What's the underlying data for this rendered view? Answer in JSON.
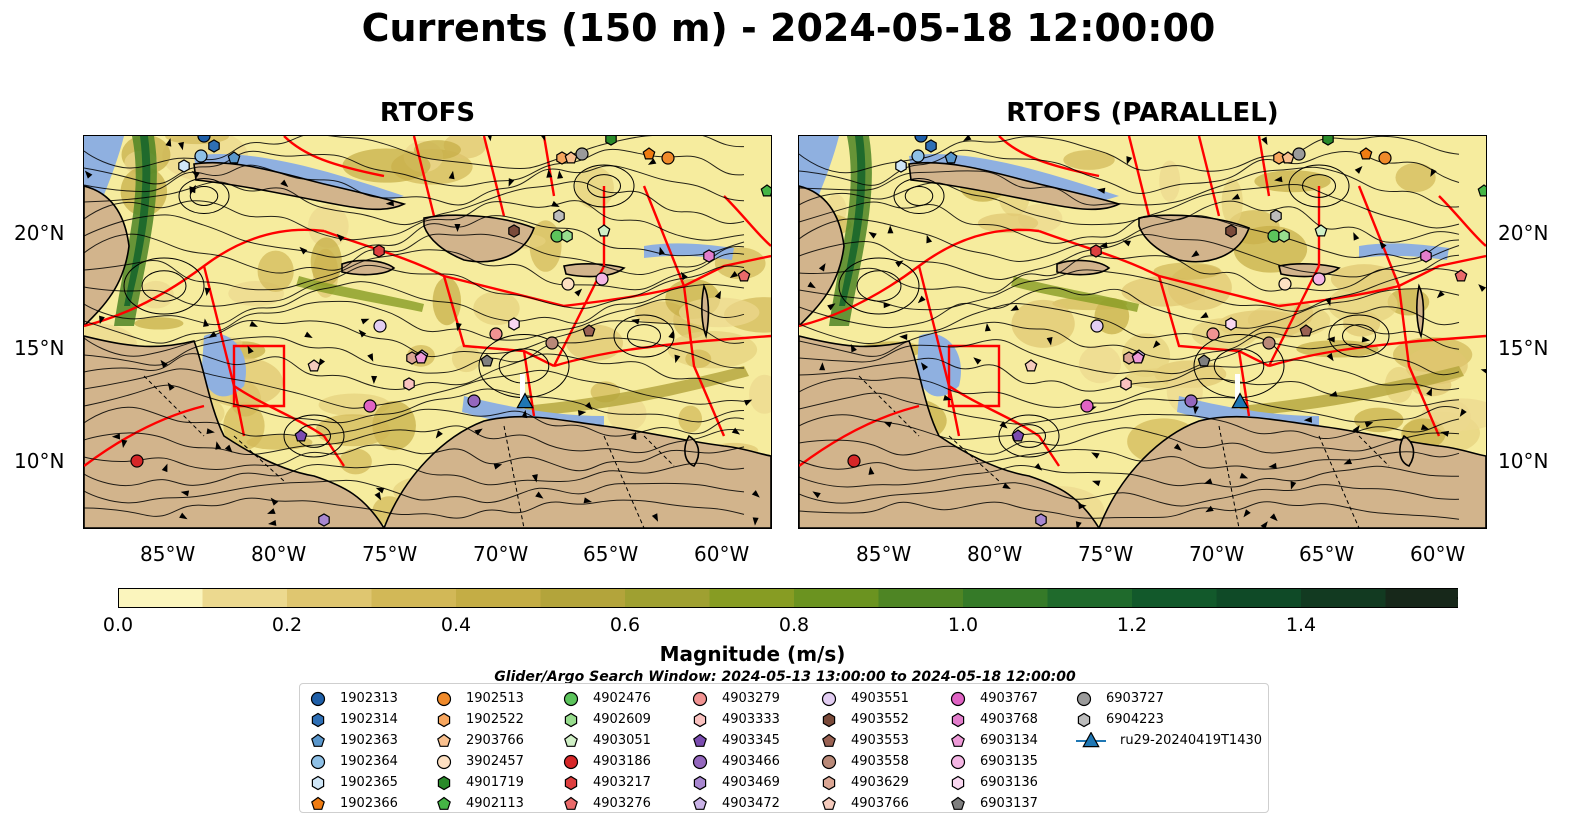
{
  "figure": {
    "title": "Currents (150 m) - 2024-05-18 12:00:00",
    "panels": [
      {
        "title": "RTOFS"
      },
      {
        "title": "RTOFS (PARALLEL)"
      }
    ],
    "lon_ticks": [
      "85°W",
      "80°W",
      "75°W",
      "70°W",
      "65°W",
      "60°W"
    ],
    "lat_ticks": [
      "20°N",
      "15°N",
      "10°N"
    ]
  },
  "colorbar": {
    "label": "Magnitude (m/s)",
    "ticks": [
      "0.0",
      "0.2",
      "0.4",
      "0.6",
      "0.8",
      "1.0",
      "1.2",
      "1.4"
    ],
    "colors": [
      "#fbf5bd",
      "#ecd98f",
      "#dfc670",
      "#d2b857",
      "#c4ad45",
      "#b3a43b",
      "#9fa031",
      "#879c23",
      "#6b9320",
      "#4e8524",
      "#357a28",
      "#1f6a2c",
      "#12592b",
      "#0f4a27",
      "#123a21",
      "#17281a",
      "#141c12"
    ]
  },
  "legend": {
    "search_window": "Glider/Argo Search Window: 2024-05-13 13:00:00 to 2024-05-18 12:00:00",
    "items": [
      {
        "label": "1902313",
        "marker": "circle",
        "color": "#1f5fa8"
      },
      {
        "label": "1902314",
        "marker": "hexagon",
        "color": "#2e6fb5"
      },
      {
        "label": "1902363",
        "marker": "pentagon",
        "color": "#5a97cc"
      },
      {
        "label": "1902364",
        "marker": "circle",
        "color": "#8ec0e6"
      },
      {
        "label": "1902365",
        "marker": "hexagon",
        "color": "#cfe6f7"
      },
      {
        "label": "1902366",
        "marker": "pentagon",
        "color": "#f07c12"
      },
      {
        "label": "1902513",
        "marker": "circle",
        "color": "#f08a2a"
      },
      {
        "label": "1902522",
        "marker": "hexagon",
        "color": "#f7a65e"
      },
      {
        "label": "2903766",
        "marker": "pentagon",
        "color": "#f9c08e"
      },
      {
        "label": "3902457",
        "marker": "circle",
        "color": "#fde0c2"
      },
      {
        "label": "4901719",
        "marker": "hexagon",
        "color": "#2a8a2a"
      },
      {
        "label": "4902113",
        "marker": "pentagon",
        "color": "#45b545"
      },
      {
        "label": "4902476",
        "marker": "circle",
        "color": "#5cc45c"
      },
      {
        "label": "4902609",
        "marker": "hexagon",
        "color": "#98dd8e"
      },
      {
        "label": "4903051",
        "marker": "pentagon",
        "color": "#d0f0c6"
      },
      {
        "label": "4903186",
        "marker": "circle",
        "color": "#d62728"
      },
      {
        "label": "4903217",
        "marker": "hexagon",
        "color": "#dd3f3f"
      },
      {
        "label": "4903276",
        "marker": "pentagon",
        "color": "#ea6a6a"
      },
      {
        "label": "4903279",
        "marker": "circle",
        "color": "#f19392"
      },
      {
        "label": "4903333",
        "marker": "hexagon",
        "color": "#fac2c0"
      },
      {
        "label": "4903345",
        "marker": "pentagon",
        "color": "#7b4cb0"
      },
      {
        "label": "4903466",
        "marker": "circle",
        "color": "#9467bd"
      },
      {
        "label": "4903469",
        "marker": "hexagon",
        "color": "#a887d0"
      },
      {
        "label": "4903472",
        "marker": "pentagon",
        "color": "#c9b2e6"
      },
      {
        "label": "4903551",
        "marker": "circle",
        "color": "#e2cdf2"
      },
      {
        "label": "4903552",
        "marker": "hexagon",
        "color": "#7a4a3a"
      },
      {
        "label": "4903553",
        "marker": "pentagon",
        "color": "#9a6253"
      },
      {
        "label": "4903558",
        "marker": "circle",
        "color": "#b98978"
      },
      {
        "label": "4903629",
        "marker": "hexagon",
        "color": "#dba694"
      },
      {
        "label": "4903766",
        "marker": "pentagon",
        "color": "#f5cbbd"
      },
      {
        "label": "4903767",
        "marker": "circle",
        "color": "#e063c4"
      },
      {
        "label": "4903768",
        "marker": "hexagon",
        "color": "#e37dcc"
      },
      {
        "label": "6903134",
        "marker": "pentagon",
        "color": "#ee9ad8"
      },
      {
        "label": "6903135",
        "marker": "circle",
        "color": "#f4b6e4"
      },
      {
        "label": "6903136",
        "marker": "hexagon",
        "color": "#f9d7f0"
      },
      {
        "label": "6903137",
        "marker": "pentagon",
        "color": "#7f7f7f"
      },
      {
        "label": "6903727",
        "marker": "circle",
        "color": "#9a9a9a"
      },
      {
        "label": "6904223",
        "marker": "hexagon",
        "color": "#bcbcbc"
      },
      {
        "label": "ru29-20240419T1430",
        "marker": "triangle-line",
        "color": "#1f77b4"
      }
    ]
  },
  "colors": {
    "ocean_low": "#f6ec9e",
    "land": "#d2b48c",
    "shelf": "#8fb0e0",
    "eez": "#ff0000",
    "streamline": "#000000"
  }
}
